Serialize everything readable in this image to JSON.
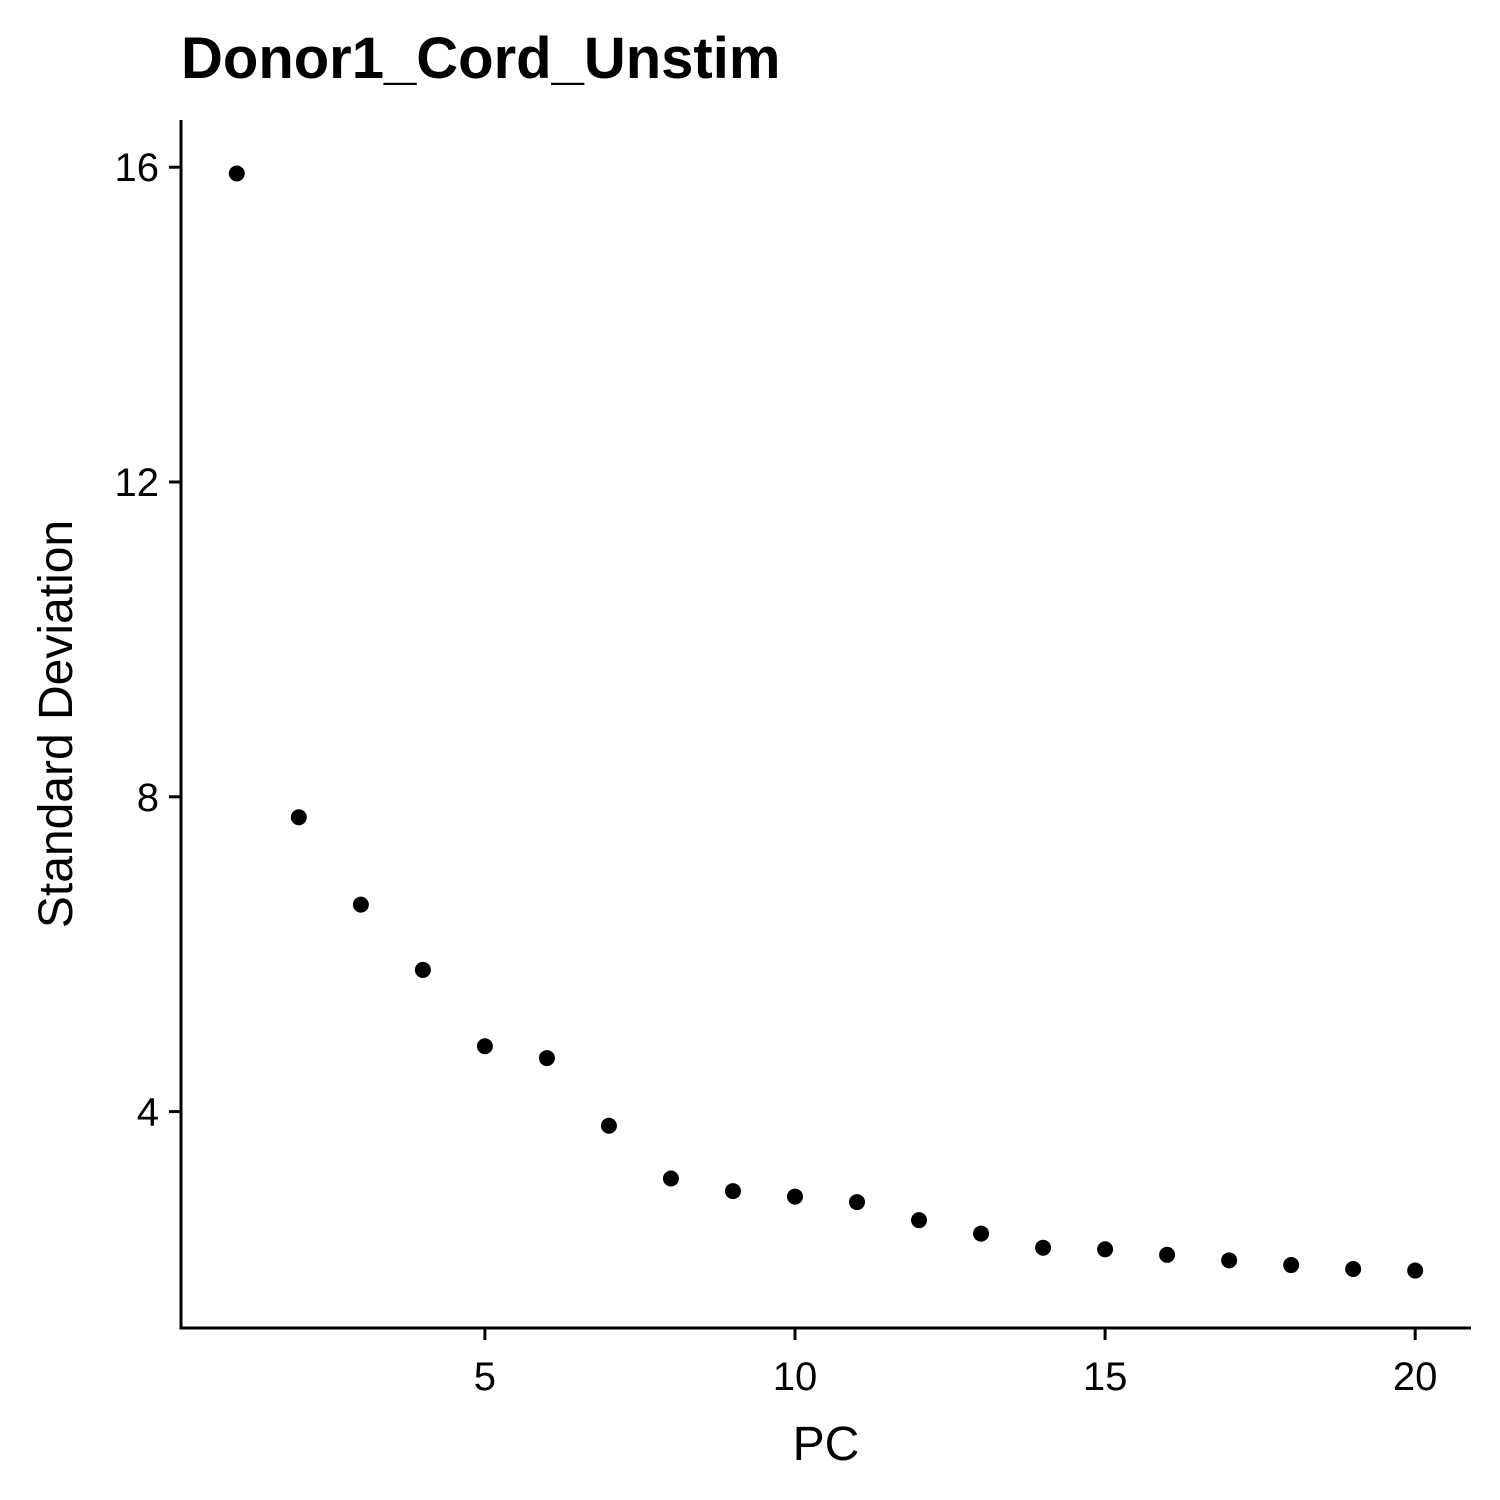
{
  "chart_data": {
    "type": "scatter",
    "title": "Donor1_Cord_Unstim",
    "xlabel": "PC",
    "ylabel": "Standard Deviation",
    "xlim": [
      0.1,
      20.9
    ],
    "ylim": [
      1.25,
      16.6
    ],
    "x_ticks": [
      5,
      10,
      15,
      20
    ],
    "x_tick_labels": [
      "5",
      "10",
      "15",
      "20"
    ],
    "y_ticks": [
      4,
      8,
      12,
      16
    ],
    "y_tick_labels": [
      "4",
      "8",
      "12",
      "16"
    ],
    "grid": false,
    "point_color": "#000000",
    "series": [
      {
        "x": [
          1,
          2,
          3,
          4,
          5,
          6,
          7,
          8,
          9,
          10,
          11,
          12,
          13,
          14,
          15,
          16,
          17,
          18,
          19,
          20
        ],
        "values": [
          15.92,
          7.74,
          6.63,
          5.8,
          4.83,
          4.68,
          3.82,
          3.15,
          2.99,
          2.92,
          2.85,
          2.62,
          2.45,
          2.27,
          2.25,
          2.18,
          2.11,
          2.05,
          2.0,
          1.98
        ]
      }
    ]
  }
}
